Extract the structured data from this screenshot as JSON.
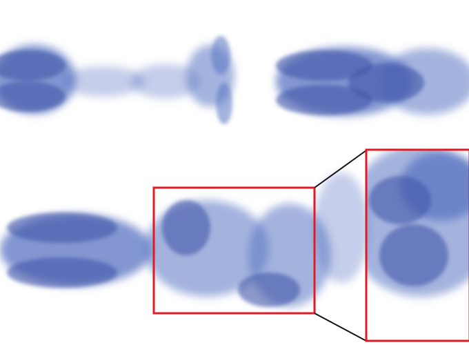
{
  "figure": {
    "smoke_color": "#5a74c2",
    "smoke_dark": "#3f57a8",
    "highlight_color": "#e01b24",
    "connector_color": "#111111",
    "background": "#ffffff"
  },
  "panels": [
    {
      "name": "smoke-plume-top-left"
    },
    {
      "name": "smoke-plume-top-right"
    },
    {
      "name": "smoke-plume-bottom"
    },
    {
      "name": "zoomed-inset"
    }
  ]
}
